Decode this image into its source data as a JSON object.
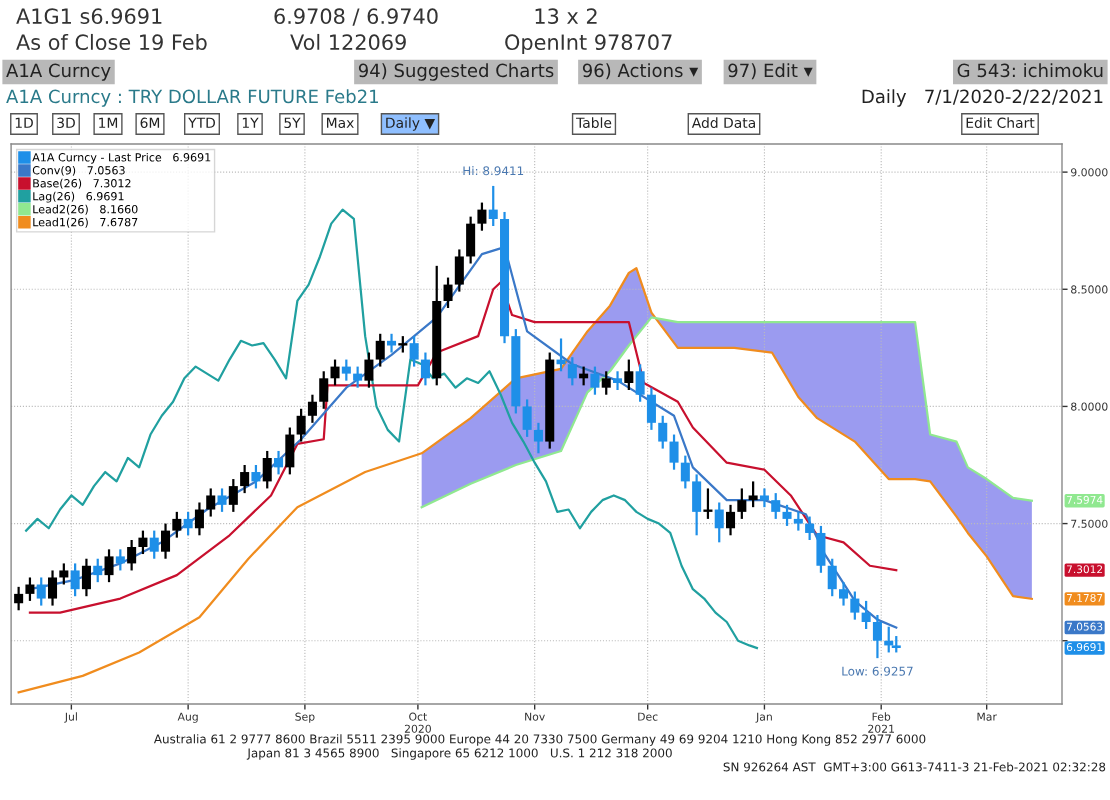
{
  "chart_data": {
    "type": "candlestick",
    "title": "A1A Curncy : TRY DOLLAR FUTURE Feb21",
    "subtitle": "Daily   7/1/2020-2/22/2021",
    "xlim": [
      "2020-06-29",
      "2021-04-04"
    ],
    "ylim": [
      6.73,
      9.12
    ],
    "xticks": [
      {
        "value": "2020-07-15",
        "label": "Jul"
      },
      {
        "value": "2020-08-15",
        "label": "Aug"
      },
      {
        "value": "2020-09-15",
        "label": "Sep"
      },
      {
        "value": "2020-10-15",
        "label": "Oct\n2020"
      },
      {
        "value": "2020-11-15",
        "label": "Nov"
      },
      {
        "value": "2020-12-15",
        "label": "Dec"
      },
      {
        "value": "2021-01-15",
        "label": "Jan"
      },
      {
        "value": "2021-02-15",
        "label": "Feb\n2021"
      },
      {
        "value": "2021-03-15",
        "label": "Mar"
      }
    ],
    "yticks": [
      {
        "value": 7.0,
        "label": null
      },
      {
        "value": 7.5,
        "label": "7.5000"
      },
      {
        "value": 8.0,
        "label": "8.0000"
      },
      {
        "value": 8.5,
        "label": "8.5000"
      },
      {
        "value": 9.0,
        "label": "9.0000"
      }
    ],
    "grid": true,
    "legend": "top left",
    "series": [
      {
        "type": "line",
        "name": "Lead1(26)   7.6787",
        "color": "#f08c1e",
        "x": [
          "2020-07-01",
          "2020-07-18",
          "2020-08-02",
          "2020-08-18",
          "2020-08-31",
          "2020-09-13",
          "2020-10-01",
          "2020-10-16",
          "2020-10-29",
          "2020-11-10",
          "2020-11-22",
          "2020-11-29",
          "2020-12-05",
          "2020-12-10",
          "2020-12-12",
          "2020-12-16",
          "2020-12-23",
          "2021-01-07",
          "2021-01-17",
          "2021-01-24",
          "2021-01-29",
          "2021-02-08",
          "2021-02-17",
          "2021-02-24",
          "2021-02-28",
          "2021-03-07",
          "2021-03-10",
          "2021-03-15",
          "2021-03-22",
          "2021-03-27"
        ],
        "values": [
          6.78,
          6.85,
          6.95,
          7.1,
          7.35,
          7.57,
          7.72,
          7.8,
          7.95,
          8.12,
          8.16,
          8.32,
          8.43,
          8.57,
          8.59,
          8.4,
          8.25,
          8.25,
          8.23,
          8.04,
          7.95,
          7.85,
          7.69,
          7.69,
          7.68,
          7.53,
          7.46,
          7.36,
          7.19,
          7.1787
        ],
        "value_labels": [
          null,
          null,
          null,
          null,
          null,
          null,
          null,
          null,
          null,
          null,
          null,
          null,
          null,
          null,
          null,
          null,
          null,
          null,
          null,
          null,
          null,
          null,
          null,
          null,
          null,
          null,
          null,
          null,
          null,
          null
        ]
      },
      {
        "type": "line",
        "name": "Lead2(26)   8.1660",
        "color": "#90e890",
        "x": [
          "2020-10-16",
          "2020-10-29",
          "2020-11-10",
          "2020-11-22",
          "2020-11-29",
          "2020-12-05",
          "2020-12-10",
          "2020-12-12",
          "2020-12-16",
          "2020-12-23",
          "2021-01-07",
          "2021-01-17",
          "2021-01-24",
          "2021-01-29",
          "2021-02-08",
          "2021-02-17",
          "2021-02-24",
          "2021-02-28",
          "2021-03-07",
          "2021-03-10",
          "2021-03-15",
          "2021-03-22",
          "2021-03-27"
        ],
        "values": [
          7.57,
          7.67,
          7.75,
          7.81,
          8.06,
          8.15,
          8.26,
          8.3,
          8.38,
          8.36,
          8.36,
          8.36,
          8.36,
          8.36,
          8.36,
          8.36,
          8.36,
          7.88,
          7.85,
          7.74,
          7.69,
          7.61,
          7.5974
        ],
        "lower": [
          7.8,
          7.95,
          8.12,
          8.16,
          8.32,
          8.43,
          8.57,
          8.59,
          8.4,
          8.25,
          8.25,
          8.23,
          8.04,
          7.95,
          7.85,
          7.69,
          7.69,
          7.68,
          7.53,
          7.46,
          7.36,
          7.19,
          7.1787
        ],
        "upper": [
          7.57,
          7.67,
          7.75,
          7.81,
          8.06,
          8.15,
          8.26,
          8.3,
          8.38,
          8.36,
          8.36,
          8.36,
          8.36,
          8.36,
          8.36,
          8.36,
          8.36,
          7.88,
          7.85,
          7.74,
          7.69,
          7.61,
          7.5974
        ],
        "value_labels": [
          null,
          null,
          null,
          null,
          null,
          null,
          null,
          null,
          null,
          null,
          null,
          null,
          null,
          null,
          null,
          null,
          null,
          null,
          null,
          null,
          null,
          null,
          null
        ]
      },
      {
        "type": "line",
        "name": "Lag(26)   6.9691",
        "color": "#20a0a0",
        "x": [
          "2020-07-03",
          "2020-07-06",
          "2020-07-09",
          "2020-07-12",
          "2020-07-15",
          "2020-07-18",
          "2020-07-21",
          "2020-07-24",
          "2020-07-27",
          "2020-07-30",
          "2020-08-02",
          "2020-08-05",
          "2020-08-08",
          "2020-08-11",
          "2020-08-14",
          "2020-08-17",
          "2020-08-20",
          "2020-08-23",
          "2020-08-26",
          "2020-08-29",
          "2020-09-01",
          "2020-09-04",
          "2020-09-07",
          "2020-09-10",
          "2020-09-13",
          "2020-09-16",
          "2020-09-19",
          "2020-09-22",
          "2020-09-25",
          "2020-09-28",
          "2020-10-01",
          "2020-10-04",
          "2020-10-07",
          "2020-10-10",
          "2020-10-13",
          "2020-10-16",
          "2020-10-19",
          "2020-10-22",
          "2020-10-25",
          "2020-10-28",
          "2020-10-31",
          "2020-11-03",
          "2020-11-06",
          "2020-11-09",
          "2020-11-12",
          "2020-11-15",
          "2020-11-18",
          "2020-11-21",
          "2020-11-24",
          "2020-11-27",
          "2020-11-30",
          "2020-12-03",
          "2020-12-06",
          "2020-12-09",
          "2020-12-12",
          "2020-12-15",
          "2020-12-18",
          "2020-12-21",
          "2020-12-24",
          "2020-12-27",
          "2020-12-30",
          "2021-01-02",
          "2021-01-05",
          "2021-01-08",
          "2021-01-11",
          "2021-01-13"
        ],
        "values": [
          7.47,
          7.52,
          7.48,
          7.56,
          7.62,
          7.58,
          7.66,
          7.72,
          7.68,
          7.78,
          7.74,
          7.88,
          7.96,
          8.02,
          8.12,
          8.17,
          8.14,
          8.11,
          8.2,
          8.28,
          8.26,
          8.27,
          8.2,
          8.12,
          8.45,
          8.52,
          8.64,
          8.78,
          8.84,
          8.8,
          8.3,
          8.0,
          7.9,
          7.85,
          8.2,
          8.18,
          8.12,
          8.14,
          8.08,
          8.12,
          8.1,
          8.15,
          8.05,
          7.93,
          7.85,
          7.76,
          7.68,
          7.55,
          7.56,
          7.48,
          7.55,
          7.6,
          7.62,
          7.6,
          7.55,
          7.52,
          7.5,
          7.46,
          7.32,
          7.22,
          7.18,
          7.12,
          7.08,
          7.0,
          6.98,
          6.9691
        ]
      },
      {
        "type": "line",
        "name": "Base(26)   7.3012",
        "color": "#c8102e",
        "x": [
          "2020-07-04",
          "2020-07-12",
          "2020-07-28",
          "2020-08-12",
          "2020-08-26",
          "2020-09-06",
          "2020-09-13",
          "2020-09-20",
          "2020-09-21",
          "2020-10-15",
          "2020-10-20",
          "2020-10-31",
          "2020-11-04",
          "2020-11-06",
          "2020-11-09",
          "2020-11-15",
          "2020-12-10",
          "2020-12-14",
          "2020-12-23",
          "2020-12-27",
          "2021-01-05",
          "2021-01-15",
          "2021-01-22",
          "2021-01-29",
          "2021-02-05",
          "2021-02-12",
          "2021-02-19"
        ],
        "values": [
          7.12,
          7.12,
          7.18,
          7.28,
          7.45,
          7.62,
          7.84,
          7.86,
          8.09,
          8.09,
          8.23,
          8.3,
          8.5,
          8.53,
          8.39,
          8.36,
          8.36,
          8.1,
          8.02,
          7.91,
          7.76,
          7.73,
          7.62,
          7.45,
          7.42,
          7.32,
          7.3012
        ],
        "value_labels": [
          null,
          null,
          null,
          null,
          null,
          null,
          null,
          null,
          null,
          null,
          null,
          null,
          null,
          null,
          null,
          null,
          null,
          null,
          null,
          null,
          null,
          null,
          null,
          null,
          null,
          null,
          null
        ]
      },
      {
        "type": "line",
        "name": "Conv(9)   7.0563",
        "color": "#3a78c8",
        "x": [
          "2020-07-04",
          "2020-07-16",
          "2020-07-28",
          "2020-08-08",
          "2020-08-20",
          "2020-09-02",
          "2020-09-14",
          "2020-09-26",
          "2020-10-08",
          "2020-10-20",
          "2020-11-01",
          "2020-11-07",
          "2020-11-13",
          "2020-11-25",
          "2020-12-07",
          "2020-12-22",
          "2020-12-27",
          "2021-01-05",
          "2021-01-15",
          "2021-01-26",
          "2021-01-31",
          "2021-02-08",
          "2021-02-14",
          "2021-02-19"
        ],
        "values": [
          7.22,
          7.26,
          7.33,
          7.42,
          7.56,
          7.68,
          7.86,
          8.08,
          8.22,
          8.38,
          8.65,
          8.68,
          8.32,
          8.18,
          8.11,
          7.96,
          7.74,
          7.6,
          7.6,
          7.54,
          7.37,
          7.17,
          7.09,
          7.0563
        ],
        "value_labels": [
          null,
          null,
          null,
          null,
          null,
          null,
          null,
          null,
          null,
          null,
          null,
          null,
          null,
          null,
          null,
          null,
          null,
          null,
          null,
          null,
          null,
          null,
          null,
          null
        ]
      },
      {
        "name": "A1A Curncy - Last Price   6.9691",
        "color": "#1e8fe8",
        "x": [
          "2020-07-01",
          "2020-07-04",
          "2020-07-07",
          "2020-07-10",
          "2020-07-13",
          "2020-07-16",
          "2020-07-19",
          "2020-07-22",
          "2020-07-25",
          "2020-07-28",
          "2020-07-31",
          "2020-08-03",
          "2020-08-06",
          "2020-08-09",
          "2020-08-12",
          "2020-08-15",
          "2020-08-18",
          "2020-08-21",
          "2020-08-24",
          "2020-08-27",
          "2020-08-30",
          "2020-09-02",
          "2020-09-05",
          "2020-09-08",
          "2020-09-11",
          "2020-09-14",
          "2020-09-17",
          "2020-09-20",
          "2020-09-23",
          "2020-09-26",
          "2020-09-29",
          "2020-10-02",
          "2020-10-05",
          "2020-10-08",
          "2020-10-11",
          "2020-10-14",
          "2020-10-17",
          "2020-10-20",
          "2020-10-23",
          "2020-10-26",
          "2020-10-29",
          "2020-11-01",
          "2020-11-04",
          "2020-11-07",
          "2020-11-10",
          "2020-11-13",
          "2020-11-16",
          "2020-11-19",
          "2020-11-22",
          "2020-11-25",
          "2020-11-28",
          "2020-12-01",
          "2020-12-04",
          "2020-12-07",
          "2020-12-10",
          "2020-12-13",
          "2020-12-16",
          "2020-12-19",
          "2020-12-22",
          "2020-12-25",
          "2020-12-28",
          "2020-12-31",
          "2021-01-03",
          "2021-01-06",
          "2021-01-09",
          "2021-01-12",
          "2021-01-15",
          "2021-01-18",
          "2021-01-21",
          "2021-01-24",
          "2021-01-27",
          "2021-01-30",
          "2021-02-02",
          "2021-02-05",
          "2021-02-08",
          "2021-02-11",
          "2021-02-14",
          "2021-02-17",
          "2021-02-19"
        ],
        "ohlc": [
          [
            7.16,
            7.23,
            7.13,
            7.2
          ],
          [
            7.2,
            7.27,
            7.17,
            7.24
          ],
          [
            7.24,
            7.27,
            7.15,
            7.18
          ],
          [
            7.18,
            7.3,
            7.15,
            7.27
          ],
          [
            7.27,
            7.33,
            7.24,
            7.3
          ],
          [
            7.3,
            7.33,
            7.19,
            7.22
          ],
          [
            7.22,
            7.35,
            7.19,
            7.32
          ],
          [
            7.32,
            7.35,
            7.25,
            7.28
          ],
          [
            7.28,
            7.39,
            7.25,
            7.36
          ],
          [
            7.36,
            7.39,
            7.3,
            7.33
          ],
          [
            7.33,
            7.43,
            7.3,
            7.4
          ],
          [
            7.4,
            7.47,
            7.37,
            7.44
          ],
          [
            7.44,
            7.47,
            7.35,
            7.38
          ],
          [
            7.38,
            7.5,
            7.35,
            7.47
          ],
          [
            7.47,
            7.55,
            7.44,
            7.52
          ],
          [
            7.52,
            7.55,
            7.45,
            7.48
          ],
          [
            7.48,
            7.59,
            7.45,
            7.56
          ],
          [
            7.56,
            7.65,
            7.53,
            7.62
          ],
          [
            7.62,
            7.65,
            7.55,
            7.58
          ],
          [
            7.58,
            7.69,
            7.55,
            7.66
          ],
          [
            7.66,
            7.75,
            7.63,
            7.72
          ],
          [
            7.72,
            7.75,
            7.65,
            7.68
          ],
          [
            7.68,
            7.81,
            7.65,
            7.78
          ],
          [
            7.78,
            7.81,
            7.71,
            7.74
          ],
          [
            7.74,
            7.91,
            7.71,
            7.88
          ],
          [
            7.88,
            7.99,
            7.85,
            7.96
          ],
          [
            7.96,
            8.05,
            7.93,
            8.02
          ],
          [
            8.02,
            8.15,
            7.99,
            8.12
          ],
          [
            8.12,
            8.2,
            8.09,
            8.17
          ],
          [
            8.17,
            8.2,
            8.11,
            8.14
          ],
          [
            8.14,
            8.17,
            8.08,
            8.11
          ],
          [
            8.11,
            8.23,
            8.08,
            8.2
          ],
          [
            8.2,
            8.31,
            8.17,
            8.28
          ],
          [
            8.28,
            8.31,
            8.23,
            8.26
          ],
          [
            8.26,
            8.3,
            8.23,
            8.27
          ],
          [
            8.27,
            8.3,
            8.17,
            8.2
          ],
          [
            8.2,
            8.23,
            8.09,
            8.12
          ],
          [
            8.12,
            8.6,
            8.09,
            8.45
          ],
          [
            8.45,
            8.55,
            8.42,
            8.52
          ],
          [
            8.52,
            8.67,
            8.49,
            8.64
          ],
          [
            8.64,
            8.81,
            8.61,
            8.78
          ],
          [
            8.78,
            8.87,
            8.75,
            8.84
          ],
          [
            8.84,
            8.9411,
            8.77,
            8.8
          ],
          [
            8.8,
            8.83,
            8.27,
            8.3
          ],
          [
            8.3,
            8.33,
            7.97,
            8.0
          ],
          [
            8.0,
            8.03,
            7.87,
            7.9
          ],
          [
            7.9,
            7.93,
            7.8,
            7.85
          ],
          [
            7.85,
            8.23,
            7.82,
            8.2
          ],
          [
            8.2,
            8.29,
            8.15,
            8.18
          ],
          [
            8.18,
            8.21,
            8.09,
            8.12
          ],
          [
            8.12,
            8.17,
            8.09,
            8.14
          ],
          [
            8.14,
            8.17,
            8.05,
            8.08
          ],
          [
            8.08,
            8.15,
            8.05,
            8.12
          ],
          [
            8.12,
            8.15,
            8.07,
            8.1
          ],
          [
            8.1,
            8.2,
            8.07,
            8.15
          ],
          [
            8.15,
            8.18,
            8.02,
            8.05
          ],
          [
            8.05,
            8.08,
            7.9,
            7.93
          ],
          [
            7.93,
            7.96,
            7.82,
            7.85
          ],
          [
            7.85,
            7.88,
            7.73,
            7.76
          ],
          [
            7.76,
            7.79,
            7.65,
            7.68
          ],
          [
            7.68,
            7.71,
            7.45,
            7.55
          ],
          [
            7.55,
            7.65,
            7.52,
            7.56
          ],
          [
            7.56,
            7.59,
            7.42,
            7.48
          ],
          [
            7.48,
            7.58,
            7.45,
            7.55
          ],
          [
            7.55,
            7.65,
            7.52,
            7.6
          ],
          [
            7.6,
            7.68,
            7.57,
            7.62
          ],
          [
            7.62,
            7.65,
            7.57,
            7.6
          ],
          [
            7.6,
            7.63,
            7.52,
            7.55
          ],
          [
            7.55,
            7.58,
            7.49,
            7.52
          ],
          [
            7.52,
            7.55,
            7.47,
            7.5
          ],
          [
            7.5,
            7.53,
            7.43,
            7.46
          ],
          [
            7.46,
            7.49,
            7.29,
            7.32
          ],
          [
            7.32,
            7.35,
            7.19,
            7.22
          ],
          [
            7.22,
            7.25,
            7.15,
            7.18
          ],
          [
            7.18,
            7.21,
            7.09,
            7.12
          ],
          [
            7.12,
            7.17,
            7.05,
            7.08
          ],
          [
            7.08,
            7.11,
            6.9257,
            7.0
          ],
          [
            7.0,
            7.06,
            6.95,
            6.98
          ],
          [
            6.98,
            7.02,
            6.95,
            6.9691
          ]
        ],
        "colors": [
          "#000000",
          "#000000",
          "#1e8fe8",
          "#000000",
          "#000000",
          "#1e8fe8",
          "#000000",
          "#1e8fe8",
          "#000000",
          "#1e8fe8",
          "#000000",
          "#000000",
          "#1e8fe8",
          "#000000",
          "#000000",
          "#1e8fe8",
          "#000000",
          "#000000",
          "#1e8fe8",
          "#000000",
          "#000000",
          "#1e8fe8",
          "#000000",
          "#1e8fe8",
          "#000000",
          "#000000",
          "#000000",
          "#000000",
          "#000000",
          "#1e8fe8",
          "#1e8fe8",
          "#000000",
          "#000000",
          "#1e8fe8",
          "#000000",
          "#1e8fe8",
          "#1e8fe8",
          "#000000",
          "#000000",
          "#000000",
          "#000000",
          "#000000",
          "#1e8fe8",
          "#1e8fe8",
          "#1e8fe8",
          "#1e8fe8",
          "#1e8fe8",
          "#000000",
          "#1e8fe8",
          "#1e8fe8",
          "#000000",
          "#1e8fe8",
          "#000000",
          "#1e8fe8",
          "#000000",
          "#1e8fe8",
          "#1e8fe8",
          "#1e8fe8",
          "#1e8fe8",
          "#1e8fe8",
          "#1e8fe8",
          "#000000",
          "#1e8fe8",
          "#000000",
          "#000000",
          "#000000",
          "#1e8fe8",
          "#1e8fe8",
          "#1e8fe8",
          "#1e8fe8",
          "#1e8fe8",
          "#1e8fe8",
          "#1e8fe8",
          "#1e8fe8",
          "#1e8fe8",
          "#1e8fe8",
          "#1e8fe8",
          "#1e8fe8",
          "#1e8fe8"
        ]
      }
    ],
    "annotations": [
      "A1G1 s6.9691",
      "6.9708 / 6.9740",
      "13 x 2",
      "As of Close 19 Feb",
      "Vol 122069",
      "OpenInt 978707",
      "A1A Curncy",
      "94) Suggested Charts",
      "96) Actions ▾",
      "97) Edit ▾",
      "G 543: ichimoku",
      "1D",
      "3D",
      "1M",
      "6M",
      "YTD",
      "1Y",
      "5Y",
      "Max",
      "Daily ▼",
      "Table",
      "Add Data",
      "Edit Chart",
      "Australia 61 2 9777 8600 Brazil 5511 2395 9000 Europe 44 20 7330 7500 Germany 49 69 9204 1210 Hong Kong 852 2977 6000",
      "Japan 81 3 4565 8900   Singapore 65 6212 1000   U.S. 1 212 318 2000",
      "SN 926264 AST  GMT+3:00 G613-7411-3 21-Feb-2021 02:32:28",
      {
        "text": "Hi: 8.9411",
        "x": "2020-11-04",
        "y": 8.9411
      },
      {
        "text": "Low: 6.9257",
        "x": "2021-02-14",
        "y": 6.9257
      },
      {
        "text": "7.5974",
        "y": 7.5974
      },
      {
        "text": "7.3012",
        "y": 7.3012
      },
      {
        "text": "7.1787",
        "y": 7.1787
      },
      {
        "text": "7.0563",
        "y": 7.0563
      },
      {
        "text": "6.9691",
        "y": 6.9691
      }
    ]
  }
}
